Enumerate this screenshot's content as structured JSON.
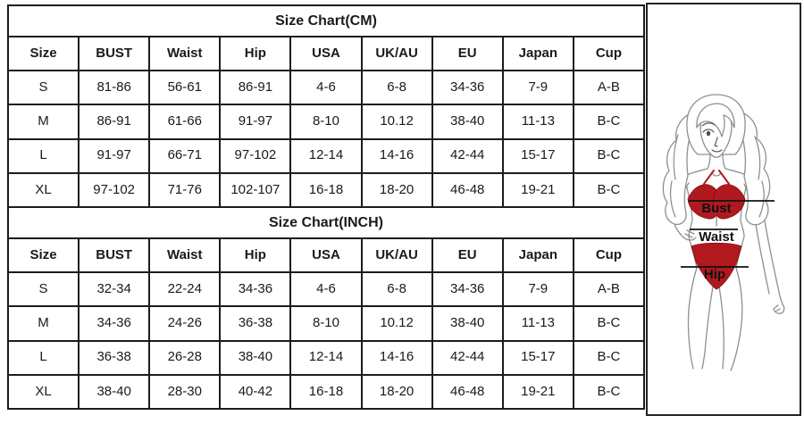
{
  "page": {
    "background": "#ffffff",
    "table_border_color": "#1c1c1c"
  },
  "tables": [
    {
      "title": "Size Chart(CM)",
      "columns": [
        "Size",
        "BUST",
        "Waist",
        "Hip",
        "USA",
        "UK/AU",
        "EU",
        "Japan",
        "Cup"
      ],
      "rows": [
        [
          "S",
          "81-86",
          "56-61",
          "86-91",
          "4-6",
          "6-8",
          "34-36",
          "7-9",
          "A-B"
        ],
        [
          "M",
          "86-91",
          "61-66",
          "91-97",
          "8-10",
          "10.12",
          "38-40",
          "11-13",
          "B-C"
        ],
        [
          "L",
          "91-97",
          "66-71",
          "97-102",
          "12-14",
          "14-16",
          "42-44",
          "15-17",
          "B-C"
        ],
        [
          "XL",
          "97-102",
          "71-76",
          "102-107",
          "16-18",
          "18-20",
          "46-48",
          "19-21",
          "B-C"
        ]
      ]
    },
    {
      "title": "Size Chart(INCH)",
      "columns": [
        "Size",
        "BUST",
        "Waist",
        "Hip",
        "USA",
        "UK/AU",
        "EU",
        "Japan",
        "Cup"
      ],
      "rows": [
        [
          "S",
          "32-34",
          "22-24",
          "34-36",
          "4-6",
          "6-8",
          "34-36",
          "7-9",
          "A-B"
        ],
        [
          "M",
          "34-36",
          "24-26",
          "36-38",
          "8-10",
          "10.12",
          "38-40",
          "11-13",
          "B-C"
        ],
        [
          "L",
          "36-38",
          "26-28",
          "38-40",
          "12-14",
          "14-16",
          "42-44",
          "15-17",
          "B-C"
        ],
        [
          "XL",
          "38-40",
          "28-30",
          "40-42",
          "16-18",
          "18-20",
          "46-48",
          "19-21",
          "B-C"
        ]
      ]
    }
  ],
  "figure": {
    "labels": {
      "bust": "Bust",
      "waist": "Waist",
      "hip": "Hip"
    },
    "colors": {
      "bikini_red": "#b1191f",
      "bikini_dark": "#7f0d12",
      "line_gray": "#8f8f8f",
      "annotation_black": "#111111"
    }
  }
}
